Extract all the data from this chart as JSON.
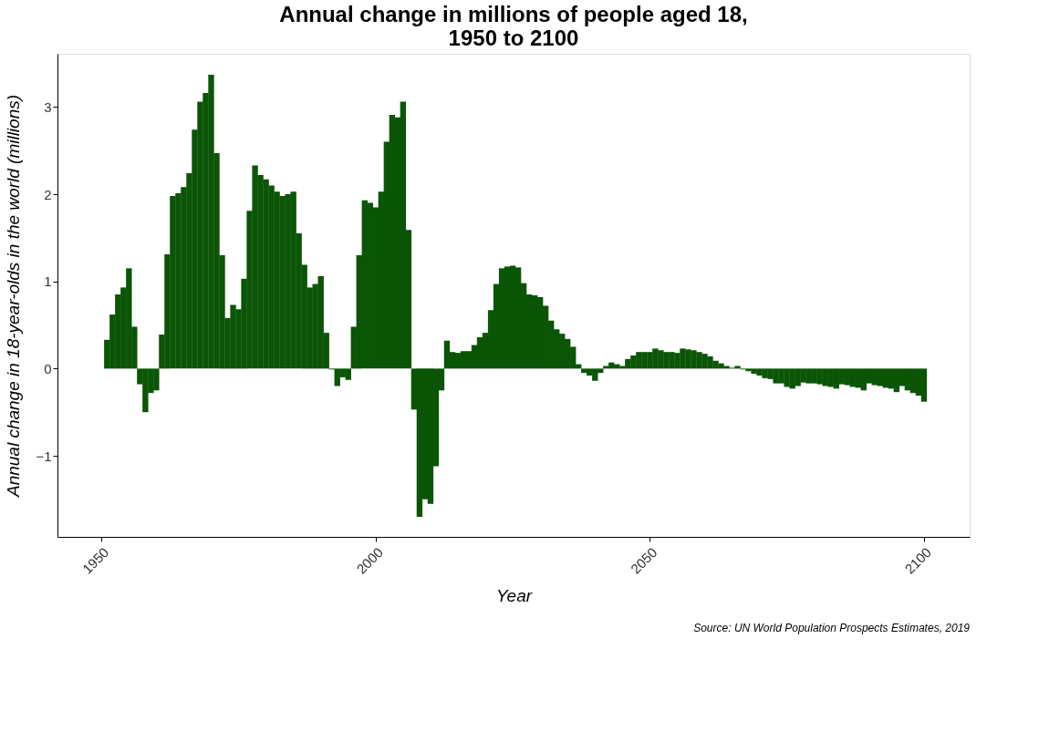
{
  "chart_data": {
    "type": "bar",
    "title": "Annual change in millions of people aged 18,\n1950 to 2100",
    "xlabel": "Year",
    "ylabel": "Annual change in 18-year-olds in the world (millions)",
    "annotations": [
      "Source: UN World Population Prospects Estimates, 2019"
    ],
    "x": [
      1951,
      1952,
      1953,
      1954,
      1955,
      1956,
      1957,
      1958,
      1959,
      1960,
      1961,
      1962,
      1963,
      1964,
      1965,
      1966,
      1967,
      1968,
      1969,
      1970,
      1971,
      1972,
      1973,
      1974,
      1975,
      1976,
      1977,
      1978,
      1979,
      1980,
      1981,
      1982,
      1983,
      1984,
      1985,
      1986,
      1987,
      1988,
      1989,
      1990,
      1991,
      1992,
      1993,
      1994,
      1995,
      1996,
      1997,
      1998,
      1999,
      2000,
      2001,
      2002,
      2003,
      2004,
      2005,
      2006,
      2007,
      2008,
      2009,
      2010,
      2011,
      2012,
      2013,
      2014,
      2015,
      2016,
      2017,
      2018,
      2019,
      2020,
      2021,
      2022,
      2023,
      2024,
      2025,
      2026,
      2027,
      2028,
      2029,
      2030,
      2031,
      2032,
      2033,
      2034,
      2035,
      2036,
      2037,
      2038,
      2039,
      2040,
      2041,
      2042,
      2043,
      2044,
      2045,
      2046,
      2047,
      2048,
      2049,
      2050,
      2051,
      2052,
      2053,
      2054,
      2055,
      2056,
      2057,
      2058,
      2059,
      2060,
      2061,
      2062,
      2063,
      2064,
      2065,
      2066,
      2067,
      2068,
      2069,
      2070,
      2071,
      2072,
      2073,
      2074,
      2075,
      2076,
      2077,
      2078,
      2079,
      2080,
      2081,
      2082,
      2083,
      2084,
      2085,
      2086,
      2087,
      2088,
      2089,
      2090,
      2091,
      2092,
      2093,
      2094,
      2095,
      2096,
      2097,
      2098,
      2099,
      2100
    ],
    "values": [
      0.33,
      0.62,
      0.85,
      0.93,
      1.15,
      0.48,
      -0.18,
      -0.5,
      -0.28,
      -0.25,
      0.39,
      1.31,
      1.98,
      2.01,
      2.08,
      2.24,
      2.74,
      3.06,
      3.16,
      3.37,
      2.47,
      1.3,
      0.58,
      0.73,
      0.68,
      1.03,
      1.81,
      2.33,
      2.22,
      2.17,
      2.1,
      2.03,
      1.98,
      2.0,
      2.03,
      1.55,
      1.19,
      0.93,
      0.97,
      1.06,
      0.41,
      -0.01,
      -0.2,
      -0.1,
      -0.13,
      0.48,
      1.3,
      1.93,
      1.9,
      1.85,
      2.03,
      2.6,
      2.91,
      2.88,
      3.06,
      1.59,
      -0.47,
      -1.7,
      -1.5,
      -1.55,
      -1.12,
      -0.25,
      0.32,
      0.19,
      0.18,
      0.2,
      0.2,
      0.27,
      0.36,
      0.41,
      0.67,
      0.97,
      1.15,
      1.17,
      1.18,
      1.16,
      0.98,
      0.85,
      0.84,
      0.82,
      0.72,
      0.55,
      0.45,
      0.4,
      0.34,
      0.25,
      0.05,
      -0.05,
      -0.08,
      -0.14,
      -0.05,
      0.03,
      0.07,
      0.05,
      0.03,
      0.11,
      0.15,
      0.19,
      0.19,
      0.19,
      0.23,
      0.21,
      0.19,
      0.19,
      0.18,
      0.23,
      0.22,
      0.21,
      0.19,
      0.17,
      0.14,
      0.09,
      0.06,
      0.03,
      0.01,
      0.03,
      -0.01,
      -0.03,
      -0.06,
      -0.08,
      -0.11,
      -0.12,
      -0.17,
      -0.17,
      -0.21,
      -0.23,
      -0.2,
      -0.16,
      -0.17,
      -0.17,
      -0.18,
      -0.2,
      -0.21,
      -0.23,
      -0.18,
      -0.19,
      -0.21,
      -0.22,
      -0.25,
      -0.17,
      -0.19,
      -0.2,
      -0.22,
      -0.23,
      -0.27,
      -0.2,
      -0.25,
      -0.28,
      -0.31,
      -0.38
    ],
    "color": "#0b5506",
    "xlim": [
      1942.8,
      2107.5
    ],
    "xticks": [
      1950,
      2000,
      2050,
      2100
    ],
    "ylim": [
      -1.93,
      3.61
    ],
    "yticks": [
      -1,
      0,
      1,
      2,
      3
    ],
    "grid": false
  }
}
